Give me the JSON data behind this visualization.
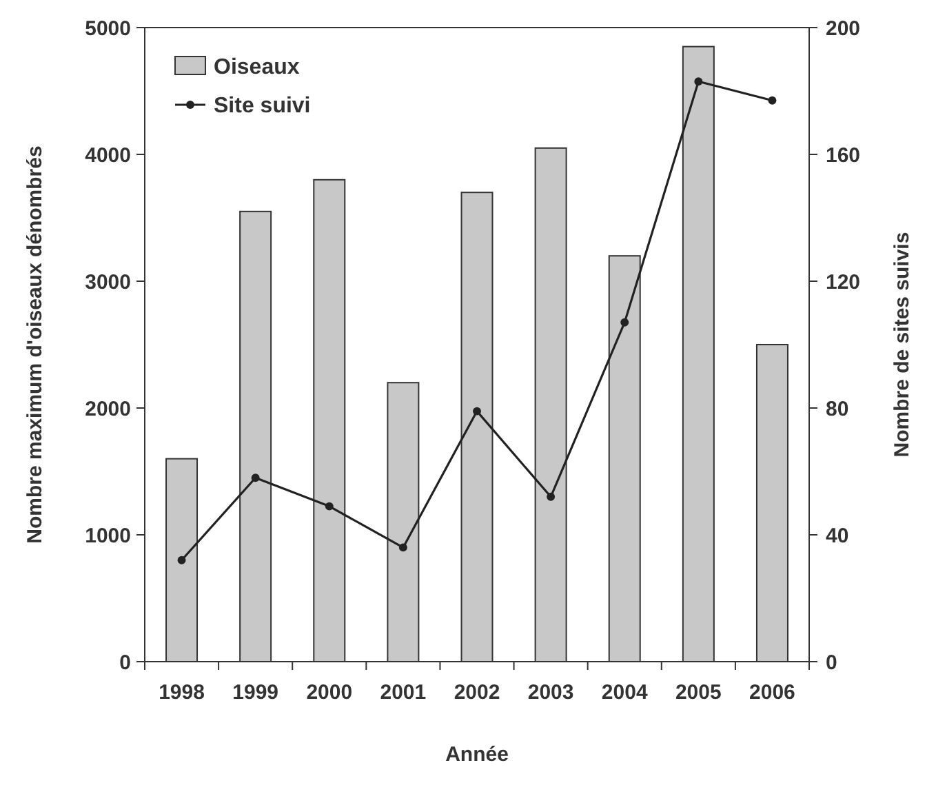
{
  "chart_data": {
    "type": "bar",
    "xlabel": "Année",
    "ylabel": "Nombre maximum d'oiseaux dénombrés",
    "y2label": "Nombre de sites suivis",
    "categories": [
      "1998",
      "1999",
      "2000",
      "2001",
      "2002",
      "2003",
      "2004",
      "2005",
      "2006"
    ],
    "series": [
      {
        "name": "Oiseaux",
        "color": "#c8c8c8",
        "values": [
          1600,
          3550,
          3800,
          2200,
          3700,
          4050,
          3200,
          4850,
          2500
        ]
      },
      {
        "name": "Site suivi",
        "type": "line",
        "axis": "y2",
        "color": "#222222",
        "marker": "circle",
        "values": [
          32,
          58,
          49,
          36,
          79,
          52,
          107,
          183,
          177
        ]
      }
    ],
    "ylim": [
      0,
      5000
    ],
    "yticks": [
      0,
      1000,
      2000,
      3000,
      4000,
      5000
    ],
    "y2lim": [
      0,
      200
    ],
    "y2ticks": [
      0,
      40,
      80,
      120,
      160,
      200
    ],
    "grid": false,
    "legend": "top left"
  }
}
